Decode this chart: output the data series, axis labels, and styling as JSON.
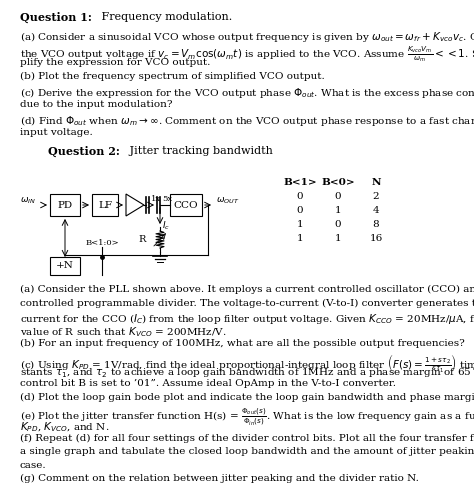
{
  "bg_color": "#ffffff",
  "text_color": "#000000",
  "figsize": [
    4.74,
    4.84
  ],
  "dpi": 100,
  "table_headers": [
    "B<1>",
    "B<0>",
    "N"
  ],
  "table_data": [
    [
      0,
      0,
      2
    ],
    [
      0,
      1,
      4
    ],
    [
      1,
      0,
      8
    ],
    [
      1,
      1,
      16
    ]
  ]
}
